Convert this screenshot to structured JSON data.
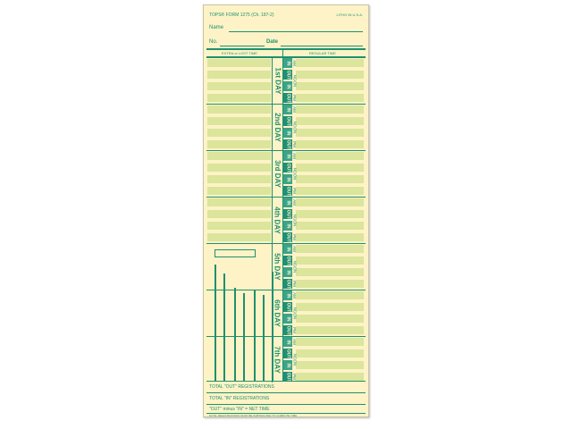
{
  "header": {
    "form_id": "TOPS® FORM 1275 (Ch. 187-2)",
    "printed": "LITHO IN U.S.A.",
    "name_label": "Name",
    "no_label": "No.",
    "date_label": "Date"
  },
  "columns": {
    "extra": "EXTRA or LOST TIME",
    "regular": "REGULAR TIME"
  },
  "days": [
    "1st DAY",
    "2nd DAY",
    "3rd DAY",
    "4th DAY",
    "5th DAY",
    "6th DAY",
    "7th DAY"
  ],
  "punches": [
    "IN",
    "OUT",
    "IN",
    "OUT"
  ],
  "periods": [
    "AM",
    "NOON",
    "PM"
  ],
  "footer": {
    "total_out": "TOTAL \"OUT\" REGISTRATIONS",
    "total_in": "TOTAL \"IN\" REGISTRATIONS",
    "net": "\"OUT\" minus \"IN\" = NET TIME",
    "note": "NOTE: REGISTRATIONS MUST BE SUBTRACTED TO COMPUTE TIME"
  },
  "colors": {
    "ink": "#1f9070",
    "card": "#fdf3c6",
    "fill": "#dbe59b"
  }
}
